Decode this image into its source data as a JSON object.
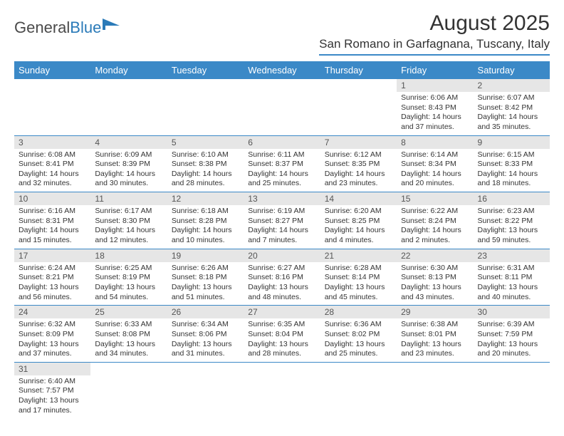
{
  "logo": {
    "text1": "General",
    "text2": "Blue"
  },
  "title": "August 2025",
  "location": "San Romano in Garfagnana, Tuscany, Italy",
  "colors": {
    "header_bg": "#3b89c7",
    "header_text": "#ffffff",
    "daynum_bg": "#e6e6e6",
    "border": "#3b89c7",
    "logo_blue": "#2a7ab8"
  },
  "day_headers": [
    "Sunday",
    "Monday",
    "Tuesday",
    "Wednesday",
    "Thursday",
    "Friday",
    "Saturday"
  ],
  "weeks": [
    [
      null,
      null,
      null,
      null,
      null,
      {
        "n": "1",
        "sunrise": "6:06 AM",
        "sunset": "8:43 PM",
        "dh": "14",
        "dm": "37"
      },
      {
        "n": "2",
        "sunrise": "6:07 AM",
        "sunset": "8:42 PM",
        "dh": "14",
        "dm": "35"
      }
    ],
    [
      {
        "n": "3",
        "sunrise": "6:08 AM",
        "sunset": "8:41 PM",
        "dh": "14",
        "dm": "32"
      },
      {
        "n": "4",
        "sunrise": "6:09 AM",
        "sunset": "8:39 PM",
        "dh": "14",
        "dm": "30"
      },
      {
        "n": "5",
        "sunrise": "6:10 AM",
        "sunset": "8:38 PM",
        "dh": "14",
        "dm": "28"
      },
      {
        "n": "6",
        "sunrise": "6:11 AM",
        "sunset": "8:37 PM",
        "dh": "14",
        "dm": "25"
      },
      {
        "n": "7",
        "sunrise": "6:12 AM",
        "sunset": "8:35 PM",
        "dh": "14",
        "dm": "23"
      },
      {
        "n": "8",
        "sunrise": "6:14 AM",
        "sunset": "8:34 PM",
        "dh": "14",
        "dm": "20"
      },
      {
        "n": "9",
        "sunrise": "6:15 AM",
        "sunset": "8:33 PM",
        "dh": "14",
        "dm": "18"
      }
    ],
    [
      {
        "n": "10",
        "sunrise": "6:16 AM",
        "sunset": "8:31 PM",
        "dh": "14",
        "dm": "15"
      },
      {
        "n": "11",
        "sunrise": "6:17 AM",
        "sunset": "8:30 PM",
        "dh": "14",
        "dm": "12"
      },
      {
        "n": "12",
        "sunrise": "6:18 AM",
        "sunset": "8:28 PM",
        "dh": "14",
        "dm": "10"
      },
      {
        "n": "13",
        "sunrise": "6:19 AM",
        "sunset": "8:27 PM",
        "dh": "14",
        "dm": "7"
      },
      {
        "n": "14",
        "sunrise": "6:20 AM",
        "sunset": "8:25 PM",
        "dh": "14",
        "dm": "4"
      },
      {
        "n": "15",
        "sunrise": "6:22 AM",
        "sunset": "8:24 PM",
        "dh": "14",
        "dm": "2"
      },
      {
        "n": "16",
        "sunrise": "6:23 AM",
        "sunset": "8:22 PM",
        "dh": "13",
        "dm": "59"
      }
    ],
    [
      {
        "n": "17",
        "sunrise": "6:24 AM",
        "sunset": "8:21 PM",
        "dh": "13",
        "dm": "56"
      },
      {
        "n": "18",
        "sunrise": "6:25 AM",
        "sunset": "8:19 PM",
        "dh": "13",
        "dm": "54"
      },
      {
        "n": "19",
        "sunrise": "6:26 AM",
        "sunset": "8:18 PM",
        "dh": "13",
        "dm": "51"
      },
      {
        "n": "20",
        "sunrise": "6:27 AM",
        "sunset": "8:16 PM",
        "dh": "13",
        "dm": "48"
      },
      {
        "n": "21",
        "sunrise": "6:28 AM",
        "sunset": "8:14 PM",
        "dh": "13",
        "dm": "45"
      },
      {
        "n": "22",
        "sunrise": "6:30 AM",
        "sunset": "8:13 PM",
        "dh": "13",
        "dm": "43"
      },
      {
        "n": "23",
        "sunrise": "6:31 AM",
        "sunset": "8:11 PM",
        "dh": "13",
        "dm": "40"
      }
    ],
    [
      {
        "n": "24",
        "sunrise": "6:32 AM",
        "sunset": "8:09 PM",
        "dh": "13",
        "dm": "37"
      },
      {
        "n": "25",
        "sunrise": "6:33 AM",
        "sunset": "8:08 PM",
        "dh": "13",
        "dm": "34"
      },
      {
        "n": "26",
        "sunrise": "6:34 AM",
        "sunset": "8:06 PM",
        "dh": "13",
        "dm": "31"
      },
      {
        "n": "27",
        "sunrise": "6:35 AM",
        "sunset": "8:04 PM",
        "dh": "13",
        "dm": "28"
      },
      {
        "n": "28",
        "sunrise": "6:36 AM",
        "sunset": "8:02 PM",
        "dh": "13",
        "dm": "25"
      },
      {
        "n": "29",
        "sunrise": "6:38 AM",
        "sunset": "8:01 PM",
        "dh": "13",
        "dm": "23"
      },
      {
        "n": "30",
        "sunrise": "6:39 AM",
        "sunset": "7:59 PM",
        "dh": "13",
        "dm": "20"
      }
    ],
    [
      {
        "n": "31",
        "sunrise": "6:40 AM",
        "sunset": "7:57 PM",
        "dh": "13",
        "dm": "17"
      },
      null,
      null,
      null,
      null,
      null,
      null
    ]
  ]
}
